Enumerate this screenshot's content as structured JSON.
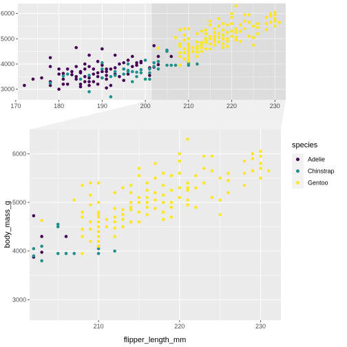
{
  "chart_data": {
    "type": "scatter",
    "xlabel": "flipper_length_mm",
    "ylabel": "body_mass_g",
    "grid": true,
    "legend": {
      "title": "species",
      "position": "right",
      "items": [
        {
          "name": "Adelie",
          "color": "#440154"
        },
        {
          "name": "Chinstrap",
          "color": "#21908C"
        },
        {
          "name": "Gentoo",
          "color": "#FDE725"
        }
      ]
    },
    "overview": {
      "xlim": [
        170.5,
        232.5
      ],
      "ylim": [
        2580,
        6400
      ],
      "x_ticks": [
        "170",
        "180",
        "190",
        "200",
        "210",
        "220",
        "230"
      ],
      "y_ticks": [
        "3000",
        "4000",
        "5000",
        "6000"
      ],
      "zoom_region": {
        "x": [
          201.5,
          232.5
        ],
        "y": [
          2580,
          6400
        ]
      }
    },
    "zoom": {
      "xlim": [
        201.5,
        232.5
      ],
      "ylim": [
        2580,
        6500
      ],
      "x_ticks": [
        "210",
        "220",
        "230"
      ],
      "y_ticks": [
        "3000",
        "4000",
        "5000",
        "6000"
      ]
    },
    "series": [
      {
        "name": "Adelie",
        "color": "#440154",
        "points": [
          [
            172,
            3150
          ],
          [
            174,
            3400
          ],
          [
            176,
            3450
          ],
          [
            178,
            3150
          ],
          [
            178,
            3300
          ],
          [
            178,
            3900
          ],
          [
            178,
            4250
          ],
          [
            180,
            3600
          ],
          [
            180,
            3800
          ],
          [
            180,
            3000
          ],
          [
            181,
            3625
          ],
          [
            181,
            3200
          ],
          [
            181,
            3400
          ],
          [
            182,
            3200
          ],
          [
            182,
            3800
          ],
          [
            183,
            3575
          ],
          [
            184,
            3400
          ],
          [
            184,
            3500
          ],
          [
            184,
            3900
          ],
          [
            184,
            4650
          ],
          [
            185,
            3650
          ],
          [
            185,
            3700
          ],
          [
            185,
            3200
          ],
          [
            185,
            3100
          ],
          [
            186,
            3800
          ],
          [
            186,
            3300
          ],
          [
            186,
            3500
          ],
          [
            186,
            4000
          ],
          [
            187,
            3450
          ],
          [
            187,
            3150
          ],
          [
            187,
            3900
          ],
          [
            187,
            4350
          ],
          [
            188,
            3300
          ],
          [
            188,
            3600
          ],
          [
            188,
            3800
          ],
          [
            189,
            3200
          ],
          [
            189,
            3650
          ],
          [
            189,
            4100
          ],
          [
            189,
            3500
          ],
          [
            190,
            3450
          ],
          [
            190,
            3700
          ],
          [
            190,
            3950
          ],
          [
            190,
            4600
          ],
          [
            191,
            3400
          ],
          [
            191,
            3700
          ],
          [
            191,
            3800
          ],
          [
            191,
            3050
          ],
          [
            192,
            3800
          ],
          [
            192,
            3150
          ],
          [
            193,
            3600
          ],
          [
            193,
            3850
          ],
          [
            193,
            4350
          ],
          [
            194,
            3500
          ],
          [
            194,
            4000
          ],
          [
            195,
            3350
          ],
          [
            195,
            4050
          ],
          [
            195,
            3800
          ],
          [
            196,
            3600
          ],
          [
            196,
            4150
          ],
          [
            197,
            3900
          ],
          [
            197,
            4300
          ],
          [
            198,
            3950
          ],
          [
            198,
            4050
          ],
          [
            199,
            4050
          ],
          [
            199,
            4100
          ],
          [
            201,
            3850
          ],
          [
            201,
            3550
          ],
          [
            202,
            4725
          ],
          [
            202,
            3875
          ],
          [
            203,
            3975
          ],
          [
            203,
            4300
          ],
          [
            206,
            4300
          ],
          [
            187,
            3300
          ],
          [
            183,
            3700
          ],
          [
            191,
            3550
          ]
        ]
      },
      {
        "name": "Chinstrap",
        "color": "#21908C",
        "points": [
          [
            178,
            3250
          ],
          [
            181,
            3525
          ],
          [
            182,
            3600
          ],
          [
            185,
            3400
          ],
          [
            187,
            3550
          ],
          [
            187,
            2900
          ],
          [
            190,
            3450
          ],
          [
            190,
            3800
          ],
          [
            190,
            4050
          ],
          [
            192,
            3500
          ],
          [
            192,
            2700
          ],
          [
            193,
            3550
          ],
          [
            193,
            3700
          ],
          [
            195,
            3600
          ],
          [
            195,
            3800
          ],
          [
            196,
            3750
          ],
          [
            196,
            4000
          ],
          [
            197,
            3300
          ],
          [
            197,
            3700
          ],
          [
            198,
            3675
          ],
          [
            198,
            3500
          ],
          [
            199,
            3650
          ],
          [
            199,
            3775
          ],
          [
            200,
            3400
          ],
          [
            201,
            3400
          ],
          [
            201,
            3800
          ],
          [
            201,
            3650
          ],
          [
            202,
            4050
          ],
          [
            203,
            4100
          ],
          [
            203,
            3800
          ],
          [
            205,
            3950
          ],
          [
            205,
            4500
          ],
          [
            205,
            4550
          ],
          [
            206,
            3950
          ],
          [
            207,
            3950
          ],
          [
            210,
            3950
          ],
          [
            210,
            4050
          ],
          [
            210,
            4100
          ],
          [
            212,
            4000
          ],
          [
            196,
            3700
          ],
          [
            200,
            4150
          ],
          [
            202,
            3900
          ]
        ]
      },
      {
        "name": "Gentoo",
        "color": "#FDE725",
        "points": [
          [
            203,
            4630
          ],
          [
            207,
            5050
          ],
          [
            208,
            3950
          ],
          [
            208,
            4300
          ],
          [
            208,
            4450
          ],
          [
            208,
            4800
          ],
          [
            208,
            5350
          ],
          [
            209,
            4200
          ],
          [
            209,
            4450
          ],
          [
            209,
            4600
          ],
          [
            209,
            5400
          ],
          [
            209,
            4950
          ],
          [
            210,
            4100
          ],
          [
            210,
            4200
          ],
          [
            210,
            4300
          ],
          [
            210,
            4400
          ],
          [
            210,
            4500
          ],
          [
            210,
            4600
          ],
          [
            210,
            4700
          ],
          [
            210,
            4750
          ],
          [
            210,
            4800
          ],
          [
            210,
            5000
          ],
          [
            211,
            4500
          ],
          [
            211,
            4650
          ],
          [
            212,
            4300
          ],
          [
            212,
            4475
          ],
          [
            212,
            4600
          ],
          [
            212,
            4700
          ],
          [
            212,
            5200
          ],
          [
            213,
            4500
          ],
          [
            213,
            4650
          ],
          [
            213,
            4750
          ],
          [
            213,
            4850
          ],
          [
            213,
            5300
          ],
          [
            214,
            4600
          ],
          [
            214,
            4850
          ],
          [
            214,
            4900
          ],
          [
            214,
            5000
          ],
          [
            214,
            5200
          ],
          [
            215,
            4600
          ],
          [
            215,
            4800
          ],
          [
            215,
            5000
          ],
          [
            215,
            5100
          ],
          [
            215,
            5550
          ],
          [
            216,
            4750
          ],
          [
            216,
            4900
          ],
          [
            216,
            5000
          ],
          [
            216,
            5100
          ],
          [
            217,
            4875
          ],
          [
            217,
            5050
          ],
          [
            217,
            5200
          ],
          [
            217,
            5800
          ],
          [
            218,
            4800
          ],
          [
            218,
            5000
          ],
          [
            218,
            5150
          ],
          [
            218,
            5350
          ],
          [
            218,
            5600
          ],
          [
            219,
            4900
          ],
          [
            219,
            5250
          ],
          [
            219,
            5550
          ],
          [
            220,
            5100
          ],
          [
            220,
            5300
          ],
          [
            220,
            5600
          ],
          [
            220,
            5850
          ],
          [
            220,
            6000
          ],
          [
            221,
            5050
          ],
          [
            221,
            5250
          ],
          [
            221,
            5300
          ],
          [
            221,
            5400
          ],
          [
            221,
            6300
          ],
          [
            222,
            4900
          ],
          [
            222,
            5300
          ],
          [
            222,
            5550
          ],
          [
            223,
            5400
          ],
          [
            223,
            5700
          ],
          [
            224,
            5100
          ],
          [
            224,
            5650
          ],
          [
            225,
            4750
          ],
          [
            225,
            5050
          ],
          [
            225,
            5500
          ],
          [
            226,
            5200
          ],
          [
            226,
            5600
          ],
          [
            228,
            5350
          ],
          [
            228,
            5600
          ],
          [
            228,
            5850
          ],
          [
            229,
            5650
          ],
          [
            229,
            5900
          ],
          [
            229,
            6000
          ],
          [
            230,
            5500
          ],
          [
            230,
            5700
          ],
          [
            230,
            5800
          ],
          [
            230,
            5950
          ],
          [
            230,
            6050
          ],
          [
            231,
            5650
          ],
          [
            216,
            5400
          ],
          [
            214,
            5350
          ],
          [
            218,
            4650
          ],
          [
            219,
            4700
          ],
          [
            212,
            4875
          ],
          [
            210,
            5400
          ],
          [
            223,
            5950
          ],
          [
            226,
            5450
          ],
          [
            215,
            5700
          ],
          [
            217,
            5500
          ],
          [
            221,
            4950
          ],
          [
            208,
            4700
          ],
          [
            209,
            5150
          ],
          [
            216,
            5250
          ],
          [
            224,
            5950
          ],
          [
            219,
            5000
          ]
        ]
      }
    ]
  }
}
